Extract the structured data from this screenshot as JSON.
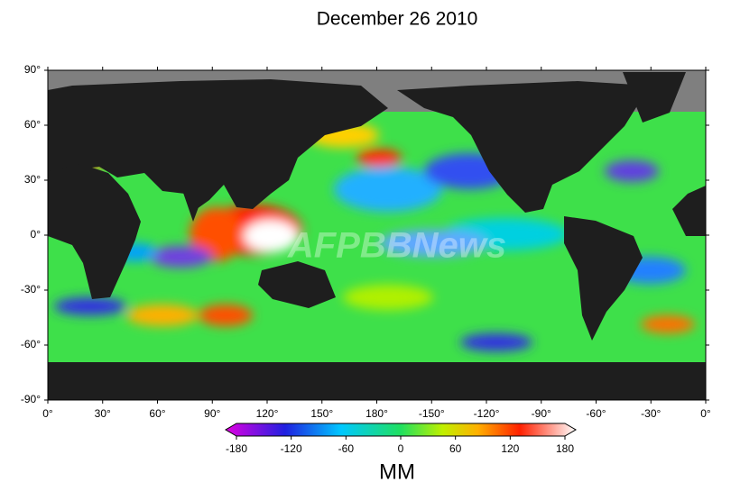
{
  "title": "December 26 2010",
  "map": {
    "x_ticks": [
      "0°",
      "30°",
      "60°",
      "90°",
      "120°",
      "150°",
      "180°",
      "-150°",
      "-120°",
      "-90°",
      "-60°",
      "-30°",
      "0°"
    ],
    "y_ticks": [
      "90°",
      "60°",
      "30°",
      "0°",
      "-30°",
      "-60°",
      "-90°"
    ],
    "watermark": "AFPBBNews"
  },
  "colorbar": {
    "range": [
      -180,
      180
    ],
    "ticks": [
      -180,
      -120,
      -60,
      0,
      60,
      120,
      180
    ],
    "unit": "MM"
  }
}
